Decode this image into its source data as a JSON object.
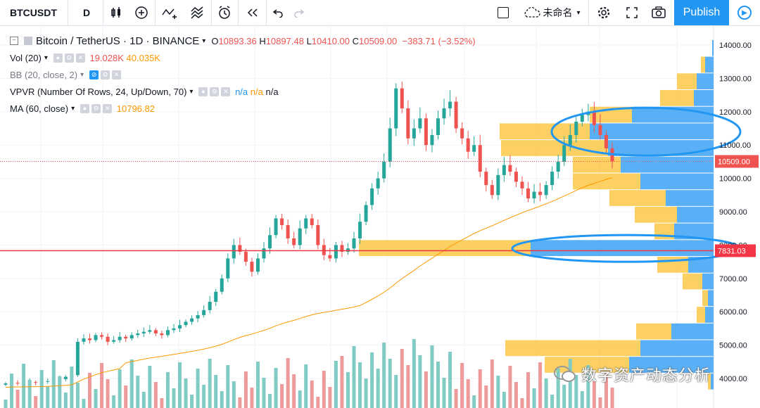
{
  "toolbar": {
    "symbol": "BTCUSDT",
    "interval": "D",
    "layout_name": "未命名",
    "publish": "Publish"
  },
  "legend": {
    "title": "Bitcoin / TetherUS · 1D · BINANCE",
    "o_label": "O",
    "open": "10893.36",
    "h_label": "H",
    "high": "10897.48",
    "l_label": "L",
    "low": "10410.00",
    "c_label": "C",
    "close": "10509.00",
    "change": "−383.71 (−3.52%)",
    "vol_label": "Vol (20)",
    "vol_value": "19.028K",
    "vol_ma": "40.035K",
    "bb_label": "BB (20, close, 2)",
    "vpvr_label": "VPVR (Number Of Rows, 24, Up/Down, 70)",
    "vpvr_v1": "n/a",
    "vpvr_v2": "n/a",
    "vpvr_v3": "n/a",
    "ma_label": "MA (60, close)",
    "ma_value": "10796.82"
  },
  "watermark": "数字资产动态分析",
  "colors": {
    "up": "#26a69a",
    "down": "#ef5350",
    "up_vol": "#80cbc4",
    "down_vol": "#ef9a9a",
    "ma": "#ff9800",
    "vp_up": "#2196f3",
    "vp_down": "#fbc02d",
    "annotation": "#2196f3",
    "hline": "#f23645"
  },
  "chart_data": {
    "type": "candlestick",
    "price_axis": {
      "min": 3500,
      "max": 14500,
      "ticks": [
        "14000.00",
        "13000.00",
        "12000.00",
        "11000.00",
        "10000.00",
        "9000.00",
        "8000.00",
        "7000.00",
        "6000.00",
        "5000.00",
        "4000.00"
      ]
    },
    "last_price_label": "10509.00",
    "horizontal_line_label": "7831.03",
    "horizontal_line_price": 7831,
    "closes": [
      3850,
      3870,
      3860,
      3880,
      3890,
      3870,
      3900,
      3920,
      3950,
      3980,
      4050,
      4100,
      5100,
      5200,
      5150,
      5300,
      5250,
      5100,
      5150,
      5250,
      5200,
      5300,
      5350,
      5400,
      5450,
      5350,
      5300,
      5450,
      5500,
      5600,
      5700,
      5800,
      5900,
      6050,
      6300,
      6600,
      7000,
      7600,
      8000,
      7800,
      7500,
      7200,
      7600,
      7900,
      8300,
      8800,
      8600,
      8200,
      8000,
      8500,
      8800,
      8600,
      8000,
      7700,
      7600,
      8000,
      7800,
      7900,
      8200,
      8700,
      9200,
      9700,
      10000,
      10500,
      11500,
      12700,
      12100,
      11200,
      11500,
      11800,
      11000,
      11300,
      11800,
      12100,
      12300,
      11500,
      11200,
      10800,
      11000,
      10200,
      9800,
      9500,
      10100,
      10400,
      10200,
      9900,
      9700,
      9400,
      9600,
      9500,
      9800,
      10200,
      10500,
      11000,
      11300,
      11700,
      11900,
      12000,
      11600,
      11300,
      10900,
      10509
    ],
    "ma60_start_index": 0,
    "volume_profile": [
      {
        "price": 13900,
        "up": 0.01,
        "down": 0.0
      },
      {
        "price": 13400,
        "up": 0.06,
        "down": 0.03
      },
      {
        "price": 12900,
        "up": 0.12,
        "down": 0.14
      },
      {
        "price": 12400,
        "up": 0.14,
        "down": 0.24
      },
      {
        "price": 11900,
        "up": 0.58,
        "down": 0.3
      },
      {
        "price": 11400,
        "up": 0.88,
        "down": 0.64
      },
      {
        "price": 10900,
        "up": 0.75,
        "down": 0.76
      },
      {
        "price": 10400,
        "up": 0.66,
        "down": 0.34
      },
      {
        "price": 9900,
        "up": 0.52,
        "down": 0.48
      },
      {
        "price": 9400,
        "up": 0.34,
        "down": 0.4
      },
      {
        "price": 8900,
        "up": 0.26,
        "down": 0.3
      },
      {
        "price": 8400,
        "up": 0.28,
        "down": 0.14
      },
      {
        "price": 7900,
        "up": 1.3,
        "down": 1.22
      },
      {
        "price": 7400,
        "up": 0.18,
        "down": 0.22
      },
      {
        "price": 6900,
        "up": 0.08,
        "down": 0.14
      },
      {
        "price": 6400,
        "up": 0.04,
        "down": 0.04
      },
      {
        "price": 5900,
        "up": 0.06,
        "down": 0.06
      },
      {
        "price": 5400,
        "up": 0.3,
        "down": 0.25
      },
      {
        "price": 4900,
        "up": 0.52,
        "down": 0.96
      },
      {
        "price": 4400,
        "up": 0.6,
        "down": 0.6
      },
      {
        "price": 3900,
        "up": 0.02,
        "down": 0.02
      }
    ]
  }
}
